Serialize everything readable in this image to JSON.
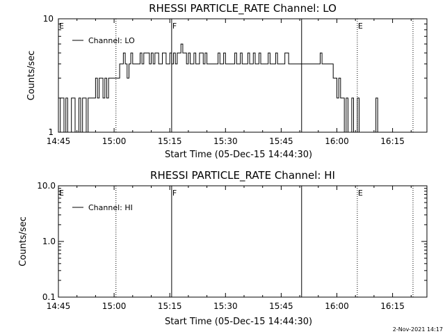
{
  "chart_data": [
    {
      "type": "line",
      "title": "RHESSI PARTICLE_RATE Channel: LO",
      "xlabel": "Start Time (05-Dec-15 14:44:30)",
      "ylabel": "Counts/sec",
      "yscale": "log",
      "ylim": [
        1,
        10
      ],
      "xlim_minutes": [
        0,
        95.5
      ],
      "x_ticks": [
        "14:45",
        "15:00",
        "15:15",
        "15:30",
        "15:45",
        "16:00",
        "16:15"
      ],
      "y_ticks": [
        "1",
        "10"
      ],
      "legend": "top-left",
      "series": [
        {
          "name": "Channel: LO",
          "x_minutes": [
            0,
            0.5,
            1,
            1.5,
            2,
            2.5,
            3,
            3.5,
            4,
            4.5,
            5,
            5.5,
            6,
            6.5,
            7,
            7.5,
            8,
            8.5,
            9,
            9.5,
            10,
            10.5,
            11,
            11.5,
            12,
            12.5,
            13,
            13.5,
            14,
            14.5,
            15,
            15.5,
            16,
            16.5,
            17,
            17.5,
            18,
            18.5,
            19,
            19.5,
            20,
            20.5,
            21,
            21.5,
            22,
            22.5,
            23,
            23.5,
            24,
            24.5,
            25,
            25.5,
            26,
            26.5,
            27,
            27.5,
            28,
            28.5,
            29,
            29.5,
            30,
            30.5,
            31,
            31.5,
            32,
            32.5,
            33,
            33.5,
            34,
            34.5,
            35,
            35.5,
            36,
            36.5,
            37,
            37.5,
            38,
            38.5,
            39,
            39.5,
            40,
            40.5,
            41,
            41.5,
            42,
            42.5,
            43,
            43.5,
            44,
            44.5,
            45,
            45.5,
            46,
            46.5,
            47,
            47.5,
            48,
            48.5,
            49,
            49.5,
            50,
            50.5,
            51,
            51.5,
            52,
            52.5,
            53,
            53.5,
            54,
            54.5,
            55,
            55.5,
            56,
            56.5,
            57,
            57.5,
            58,
            58.5,
            59,
            59.5,
            60,
            60.5,
            61,
            61.5,
            62,
            62.5,
            63,
            63.5,
            64,
            64.5,
            65,
            65.5,
            66,
            66.5,
            67,
            67.5,
            68,
            68.5,
            69,
            69.5,
            70,
            70.5,
            71,
            71.5,
            72,
            72.5,
            73,
            73.5,
            74,
            74.5,
            75,
            75.5,
            76,
            76.5,
            77,
            77.5,
            78,
            78.5,
            79,
            79.5,
            80,
            80.5,
            81,
            81.5,
            82,
            82.5,
            83,
            83.5,
            84,
            84.5,
            85,
            85.5,
            86,
            86.5,
            87,
            87.5,
            88,
            88.5,
            89,
            89.5,
            90,
            90.5,
            91
          ],
          "values": [
            1,
            2,
            2,
            1,
            2,
            1,
            1,
            2,
            2,
            1,
            1,
            2,
            1,
            2,
            2,
            1,
            2,
            2,
            2,
            2,
            3,
            2,
            3,
            3,
            2,
            3,
            2,
            3,
            3,
            3,
            3,
            3,
            3,
            4,
            4,
            5,
            4,
            3,
            4,
            5,
            4,
            4,
            4,
            4,
            5,
            4,
            5,
            5,
            5,
            4,
            5,
            4,
            5,
            5,
            4,
            4,
            5,
            5,
            4,
            4,
            5,
            4,
            5,
            4,
            5,
            5,
            6,
            5,
            5,
            4,
            5,
            4,
            4,
            5,
            4,
            4,
            5,
            5,
            4,
            5,
            4,
            4,
            4,
            4,
            4,
            4,
            5,
            4,
            4,
            5,
            4,
            4,
            4,
            4,
            4,
            5,
            4,
            4,
            5,
            4,
            4,
            4,
            5,
            4,
            4,
            5,
            4,
            4,
            5,
            4,
            4,
            4,
            4,
            5,
            4,
            4,
            4,
            5,
            4,
            4,
            4,
            4,
            5,
            5,
            4,
            4,
            4,
            4,
            4,
            4,
            4,
            4,
            4,
            4,
            4,
            4,
            4,
            4,
            4,
            4,
            4,
            5,
            4,
            4,
            4,
            4,
            4,
            4,
            3,
            3,
            2,
            3,
            2,
            2,
            1,
            2,
            1,
            1,
            2,
            1,
            1,
            2,
            1,
            1,
            1,
            1,
            1,
            1,
            1,
            1,
            1,
            2,
            1,
            1,
            1,
            1,
            1,
            1,
            1,
            1,
            1,
            1,
            1
          ]
        }
      ],
      "markers": [
        {
          "label": "E",
          "x_minutes": 0,
          "style": "solid"
        },
        {
          "label": "",
          "x_minutes": 15.5,
          "style": "dotted"
        },
        {
          "label": "F",
          "x_minutes": 30.5,
          "style": "solid"
        },
        {
          "label": "",
          "x_minutes": 65.5,
          "style": "solid"
        },
        {
          "label": "E",
          "x_minutes": 80.5,
          "style": "dotted"
        },
        {
          "label": "",
          "x_minutes": 95.5,
          "style": "dotted"
        }
      ]
    },
    {
      "type": "line",
      "title": "RHESSI PARTICLE_RATE Channel: HI",
      "xlabel": "Start Time (05-Dec-15 14:44:30)",
      "ylabel": "Counts/sec",
      "yscale": "log",
      "ylim": [
        0.1,
        10
      ],
      "xlim_minutes": [
        0,
        95.5
      ],
      "x_ticks": [
        "14:45",
        "15:00",
        "15:15",
        "15:30",
        "15:45",
        "16:00",
        "16:15"
      ],
      "y_ticks": [
        "0.1",
        "1.0",
        "10.0"
      ],
      "legend": "top-left",
      "series": [
        {
          "name": "Channel: HI",
          "x_minutes": [],
          "values": []
        }
      ],
      "markers": [
        {
          "label": "E",
          "x_minutes": 0,
          "style": "solid"
        },
        {
          "label": "",
          "x_minutes": 15.5,
          "style": "dotted"
        },
        {
          "label": "F",
          "x_minutes": 30.5,
          "style": "solid"
        },
        {
          "label": "",
          "x_minutes": 65.5,
          "style": "solid"
        },
        {
          "label": "E",
          "x_minutes": 80.5,
          "style": "dotted"
        },
        {
          "label": "",
          "x_minutes": 95.5,
          "style": "dotted"
        }
      ]
    }
  ],
  "footer": {
    "timestamp": "2-Nov-2021 14:17"
  }
}
